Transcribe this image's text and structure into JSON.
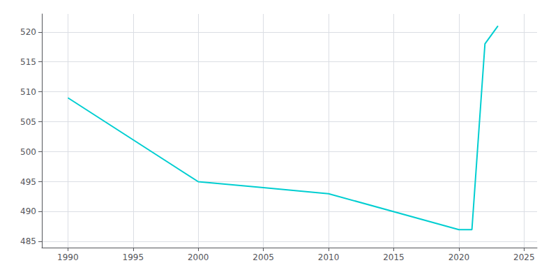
{
  "chart_data": {
    "type": "line",
    "x": [
      1990,
      2000,
      2005,
      2010,
      2020,
      2021,
      2022,
      2023
    ],
    "values": [
      509,
      495,
      494,
      493,
      487,
      487,
      518,
      521
    ],
    "color": "#00CED1",
    "xlim": [
      1988,
      2026
    ],
    "ylim": [
      484,
      523
    ],
    "xticks": [
      1990,
      1995,
      2000,
      2005,
      2010,
      2015,
      2020,
      2025
    ],
    "yticks": [
      485,
      490,
      495,
      500,
      505,
      510,
      515,
      520
    ],
    "grid": true
  }
}
